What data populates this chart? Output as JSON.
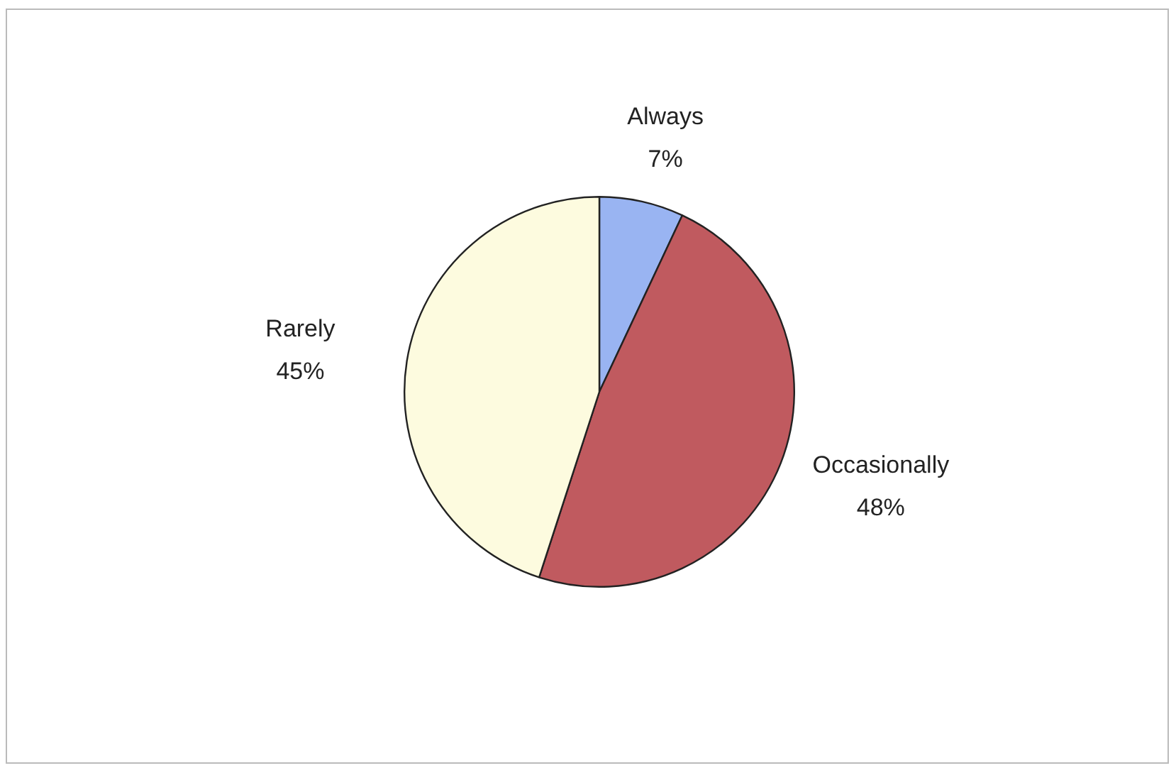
{
  "chart_data": {
    "type": "pie",
    "categories": [
      "Always",
      "Occasionally",
      "Rarely"
    ],
    "values": [
      7,
      48,
      45
    ],
    "colors": [
      "#99b4f2",
      "#c05a5f",
      "#fdfbdf"
    ],
    "value_labels": [
      "7%",
      "48%",
      "45%"
    ],
    "legend": false
  }
}
